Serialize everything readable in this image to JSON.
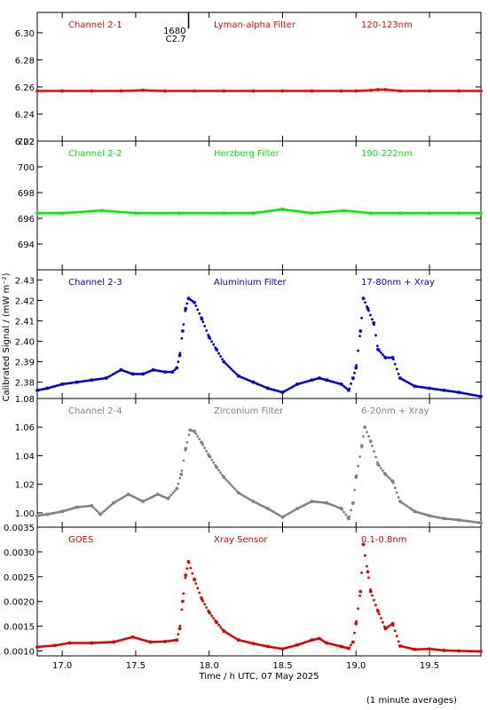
{
  "chart_data": {
    "type": "scatter",
    "xlabel": "Time / h UTC, 07 May 2025",
    "ylabel": "Calibrated Signal / (mW m⁻²)",
    "footnote": "(1 minute averages)",
    "x_range": [
      16.83,
      19.85
    ],
    "x_ticks": [
      "17.0",
      "17.5",
      "18.0",
      "18.5",
      "19.0",
      "19.5"
    ],
    "panels": [
      {
        "channel": "Channel 2-1",
        "filter": "Lyman-alpha Filter",
        "band": "120-123nm",
        "color": "#ff0000",
        "ylim": [
          6.22,
          6.315
        ],
        "y_ticks": [
          "6.22",
          "6.24",
          "6.26",
          "6.28",
          "6.30"
        ],
        "annotations": [
          "1680",
          "C2.7"
        ],
        "points": [
          [
            16.83,
            6.257
          ],
          [
            17.0,
            6.257
          ],
          [
            17.2,
            6.257
          ],
          [
            17.4,
            6.257
          ],
          [
            17.55,
            6.2575
          ],
          [
            17.7,
            6.257
          ],
          [
            17.9,
            6.257
          ],
          [
            18.1,
            6.257
          ],
          [
            18.3,
            6.257
          ],
          [
            18.5,
            6.257
          ],
          [
            18.7,
            6.257
          ],
          [
            18.9,
            6.257
          ],
          [
            19.0,
            6.257
          ],
          [
            19.1,
            6.2575
          ],
          [
            19.15,
            6.258
          ],
          [
            19.2,
            6.258
          ],
          [
            19.3,
            6.257
          ],
          [
            19.5,
            6.257
          ],
          [
            19.7,
            6.257
          ],
          [
            19.85,
            6.257
          ]
        ]
      },
      {
        "channel": "Channel 2-2",
        "filter": "Herzberg Filter",
        "band": "190-222nm",
        "color": "#00ee00",
        "ylim": [
          692.0,
          702.0
        ],
        "y_ticks": [
          "694",
          "696",
          "698",
          "700",
          "702"
        ],
        "annotations": [],
        "points": [
          [
            16.83,
            696.4
          ],
          [
            17.0,
            696.4
          ],
          [
            17.27,
            696.6
          ],
          [
            17.5,
            696.4
          ],
          [
            17.8,
            696.4
          ],
          [
            18.1,
            696.4
          ],
          [
            18.3,
            696.4
          ],
          [
            18.5,
            696.7
          ],
          [
            18.7,
            696.4
          ],
          [
            18.92,
            696.6
          ],
          [
            19.1,
            696.4
          ],
          [
            19.3,
            696.4
          ],
          [
            19.5,
            696.4
          ],
          [
            19.7,
            696.4
          ],
          [
            19.85,
            696.4
          ]
        ]
      },
      {
        "channel": "Channel 2-3",
        "filter": "Aluminium Filter",
        "band": "17-80nm + Xray",
        "color": "#0000cc",
        "ylim": [
          2.372,
          2.435
        ],
        "y_ticks": [
          "2.38",
          "2.39",
          "2.40",
          "2.41",
          "2.42",
          "2.43"
        ],
        "annotations": [],
        "points": [
          [
            16.83,
            2.376
          ],
          [
            16.9,
            2.377
          ],
          [
            17.0,
            2.379
          ],
          [
            17.1,
            2.38
          ],
          [
            17.2,
            2.381
          ],
          [
            17.3,
            2.382
          ],
          [
            17.4,
            2.386
          ],
          [
            17.48,
            2.384
          ],
          [
            17.55,
            2.384
          ],
          [
            17.62,
            2.386
          ],
          [
            17.7,
            2.385
          ],
          [
            17.75,
            2.385
          ],
          [
            17.78,
            2.387
          ],
          [
            17.8,
            2.393
          ],
          [
            17.82,
            2.405
          ],
          [
            17.84,
            2.416
          ],
          [
            17.86,
            2.421
          ],
          [
            17.9,
            2.419
          ],
          [
            17.95,
            2.411
          ],
          [
            18.0,
            2.402
          ],
          [
            18.05,
            2.396
          ],
          [
            18.1,
            2.39
          ],
          [
            18.2,
            2.383
          ],
          [
            18.3,
            2.38
          ],
          [
            18.4,
            2.377
          ],
          [
            18.5,
            2.375
          ],
          [
            18.6,
            2.379
          ],
          [
            18.7,
            2.381
          ],
          [
            18.75,
            2.382
          ],
          [
            18.8,
            2.381
          ],
          [
            18.9,
            2.379
          ],
          [
            18.95,
            2.376
          ],
          [
            18.98,
            2.382
          ],
          [
            19.0,
            2.387
          ],
          [
            19.03,
            2.405
          ],
          [
            19.05,
            2.421
          ],
          [
            19.08,
            2.416
          ],
          [
            19.12,
            2.409
          ],
          [
            19.15,
            2.396
          ],
          [
            19.2,
            2.392
          ],
          [
            19.25,
            2.392
          ],
          [
            19.3,
            2.382
          ],
          [
            19.4,
            2.378
          ],
          [
            19.5,
            2.377
          ],
          [
            19.6,
            2.376
          ],
          [
            19.7,
            2.375
          ],
          [
            19.85,
            2.373
          ]
        ]
      },
      {
        "channel": "Channel 2-4",
        "filter": "Zirconium Filter",
        "band": "6-20nm + Xray",
        "color": "#808080",
        "ylim": [
          0.99,
          1.08
        ],
        "y_ticks": [
          "1.00",
          "1.02",
          "1.04",
          "1.06",
          "1.08"
        ],
        "annotations": [],
        "points": [
          [
            16.83,
            0.998
          ],
          [
            16.9,
            0.999
          ],
          [
            17.0,
            1.001
          ],
          [
            17.1,
            1.004
          ],
          [
            17.2,
            1.005
          ],
          [
            17.26,
            0.999
          ],
          [
            17.35,
            1.007
          ],
          [
            17.45,
            1.013
          ],
          [
            17.55,
            1.008
          ],
          [
            17.65,
            1.013
          ],
          [
            17.72,
            1.01
          ],
          [
            17.78,
            1.017
          ],
          [
            17.81,
            1.027
          ],
          [
            17.84,
            1.045
          ],
          [
            17.87,
            1.058
          ],
          [
            17.9,
            1.057
          ],
          [
            17.95,
            1.049
          ],
          [
            18.0,
            1.04
          ],
          [
            18.05,
            1.032
          ],
          [
            18.1,
            1.025
          ],
          [
            18.2,
            1.014
          ],
          [
            18.3,
            1.008
          ],
          [
            18.4,
            1.003
          ],
          [
            18.5,
            0.997
          ],
          [
            18.6,
            1.003
          ],
          [
            18.7,
            1.008
          ],
          [
            18.8,
            1.007
          ],
          [
            18.9,
            1.003
          ],
          [
            18.95,
            0.996
          ],
          [
            18.98,
            1.007
          ],
          [
            19.0,
            1.025
          ],
          [
            19.04,
            1.047
          ],
          [
            19.06,
            1.06
          ],
          [
            19.1,
            1.05
          ],
          [
            19.15,
            1.034
          ],
          [
            19.2,
            1.027
          ],
          [
            19.25,
            1.022
          ],
          [
            19.3,
            1.008
          ],
          [
            19.4,
            1.001
          ],
          [
            19.5,
            0.998
          ],
          [
            19.6,
            0.996
          ],
          [
            19.7,
            0.995
          ],
          [
            19.85,
            0.993
          ]
        ]
      },
      {
        "channel": "GOES",
        "filter": "Xray Sensor",
        "band": "0.1-0.8nm",
        "color": "#dd0000",
        "ylim": [
          0.0009,
          0.0035
        ],
        "y_ticks": [
          "0.0010",
          "0.0015",
          "0.0020",
          "0.0025",
          "0.0030",
          "0.0035"
        ],
        "annotations": [],
        "points": [
          [
            16.83,
            0.00108
          ],
          [
            16.95,
            0.00111
          ],
          [
            17.05,
            0.00116
          ],
          [
            17.2,
            0.00116
          ],
          [
            17.35,
            0.00118
          ],
          [
            17.48,
            0.00128
          ],
          [
            17.6,
            0.00118
          ],
          [
            17.7,
            0.00119
          ],
          [
            17.78,
            0.00122
          ],
          [
            17.8,
            0.00145
          ],
          [
            17.82,
            0.002
          ],
          [
            17.84,
            0.00253
          ],
          [
            17.86,
            0.0028
          ],
          [
            17.9,
            0.00244
          ],
          [
            17.95,
            0.00205
          ],
          [
            18.0,
            0.00178
          ],
          [
            18.05,
            0.00158
          ],
          [
            18.1,
            0.0014
          ],
          [
            18.2,
            0.00122
          ],
          [
            18.3,
            0.00115
          ],
          [
            18.4,
            0.00109
          ],
          [
            18.5,
            0.00104
          ],
          [
            18.6,
            0.00112
          ],
          [
            18.7,
            0.00122
          ],
          [
            18.75,
            0.00125
          ],
          [
            18.8,
            0.00116
          ],
          [
            18.9,
            0.00109
          ],
          [
            18.95,
            0.00105
          ],
          [
            18.98,
            0.00118
          ],
          [
            19.0,
            0.00155
          ],
          [
            19.03,
            0.0022
          ],
          [
            19.05,
            0.00315
          ],
          [
            19.08,
            0.0026
          ],
          [
            19.1,
            0.0022
          ],
          [
            19.15,
            0.0018
          ],
          [
            19.2,
            0.00145
          ],
          [
            19.25,
            0.00155
          ],
          [
            19.3,
            0.0011
          ],
          [
            19.4,
            0.00103
          ],
          [
            19.5,
            0.00104
          ],
          [
            19.6,
            0.00101
          ],
          [
            19.7,
            0.001
          ],
          [
            19.85,
            0.00099
          ]
        ]
      }
    ]
  }
}
